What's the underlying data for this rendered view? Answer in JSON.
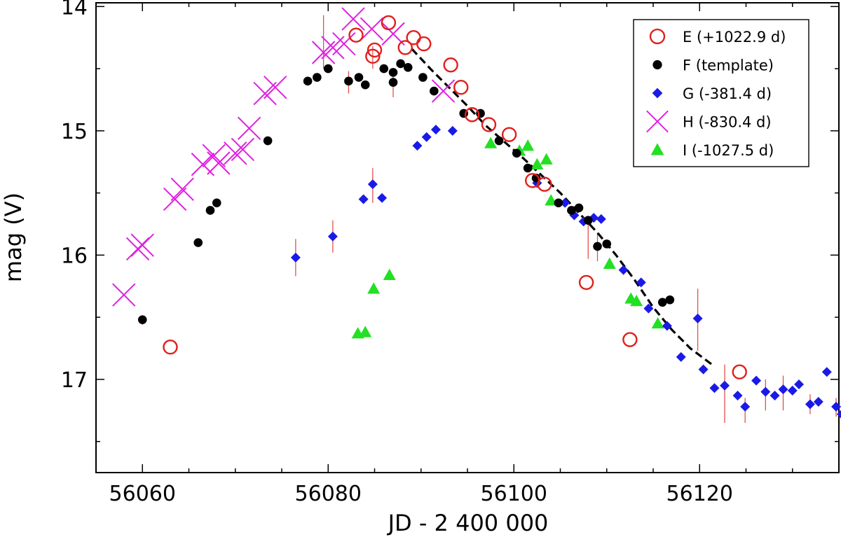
{
  "chart_data": {
    "type": "scatter",
    "title": "",
    "xlabel": "JD - 2 400 000",
    "ylabel": "mag (V)",
    "xlim": [
      56055,
      56135
    ],
    "ylim": [
      17.75,
      13.97
    ],
    "y_inverted": true,
    "xticks": [
      56060,
      56080,
      56100,
      56120
    ],
    "xtick_labels": [
      "56060",
      "56080",
      "56100",
      "56120"
    ],
    "yticks": [
      14,
      15,
      16,
      17
    ],
    "ytick_labels": [
      "14",
      "15",
      "16",
      "17"
    ],
    "legend_position": "top-right",
    "series": [
      {
        "name": "E (+1022.9 d)",
        "marker": "open-circle",
        "color": "#e0201c",
        "points": [
          [
            56063.0,
            16.74
          ],
          [
            56083.0,
            14.23
          ],
          [
            56084.8,
            14.4
          ],
          [
            56085.0,
            14.35
          ],
          [
            56086.5,
            14.13
          ],
          [
            56088.3,
            14.33
          ],
          [
            56089.2,
            14.25
          ],
          [
            56090.3,
            14.3
          ],
          [
            56093.2,
            14.47
          ],
          [
            56094.3,
            14.65
          ],
          [
            56095.5,
            14.87
          ],
          [
            56097.3,
            14.95
          ],
          [
            56099.5,
            15.03
          ],
          [
            56102.0,
            15.4
          ],
          [
            56103.3,
            15.43
          ],
          [
            56107.8,
            16.22
          ],
          [
            56112.5,
            16.68
          ],
          [
            56124.3,
            16.94
          ]
        ]
      },
      {
        "name": "F (template)",
        "marker": "filled-circle",
        "color": "#000000",
        "points": [
          [
            56060.0,
            16.52
          ],
          [
            56066.0,
            15.9
          ],
          [
            56067.3,
            15.64
          ],
          [
            56068.0,
            15.58
          ],
          [
            56073.5,
            15.08
          ],
          [
            56077.8,
            14.6
          ],
          [
            56078.8,
            14.57
          ],
          [
            56080.0,
            14.5
          ],
          [
            56082.2,
            14.6
          ],
          [
            56083.3,
            14.57
          ],
          [
            56084.0,
            14.63
          ],
          [
            56086.0,
            14.5
          ],
          [
            56087.0,
            14.53
          ],
          [
            56087.0,
            14.61
          ],
          [
            56087.8,
            14.46
          ],
          [
            56088.6,
            14.49
          ],
          [
            56090.2,
            14.57
          ],
          [
            56091.4,
            14.68
          ],
          [
            56094.6,
            14.86
          ],
          [
            56096.4,
            14.86
          ],
          [
            56098.4,
            15.08
          ],
          [
            56100.3,
            15.18
          ],
          [
            56101.5,
            15.3
          ],
          [
            56102.4,
            15.38
          ],
          [
            56104.8,
            15.58
          ],
          [
            56106.2,
            15.64
          ],
          [
            56107.0,
            15.62
          ],
          [
            56108.0,
            15.72
          ],
          [
            56109.0,
            15.93
          ],
          [
            56110.0,
            15.91
          ],
          [
            56116.0,
            16.38
          ],
          [
            56116.8,
            16.36
          ]
        ]
      },
      {
        "name": "G (-381.4 d)",
        "marker": "filled-diamond",
        "color": "#1a1ae6",
        "points": [
          [
            56076.5,
            16.02
          ],
          [
            56080.5,
            15.85
          ],
          [
            56083.8,
            15.55
          ],
          [
            56084.8,
            15.43
          ],
          [
            56085.8,
            15.54
          ],
          [
            56089.6,
            15.12
          ],
          [
            56090.6,
            15.05
          ],
          [
            56091.6,
            14.99
          ],
          [
            56093.4,
            15.0
          ],
          [
            56102.5,
            15.42
          ],
          [
            56105.5,
            15.58
          ],
          [
            56106.5,
            15.68
          ],
          [
            56107.5,
            15.73
          ],
          [
            56108.6,
            15.7
          ],
          [
            56109.4,
            15.71
          ],
          [
            56111.8,
            16.12
          ],
          [
            56113.7,
            16.22
          ],
          [
            56114.5,
            16.43
          ],
          [
            56116.5,
            16.57
          ],
          [
            56118.0,
            16.82
          ],
          [
            56119.8,
            16.51
          ],
          [
            56120.4,
            16.92
          ],
          [
            56121.6,
            17.07
          ],
          [
            56122.7,
            17.05
          ],
          [
            56124.1,
            17.13
          ],
          [
            56124.9,
            17.22
          ],
          [
            56126.1,
            17.01
          ],
          [
            56127.1,
            17.1
          ],
          [
            56128.1,
            17.13
          ],
          [
            56129.0,
            17.08
          ],
          [
            56130.0,
            17.09
          ],
          [
            56130.7,
            17.04
          ],
          [
            56131.9,
            17.2
          ],
          [
            56132.8,
            17.18
          ],
          [
            56133.7,
            16.94
          ],
          [
            56134.7,
            17.22
          ],
          [
            56135.3,
            17.28
          ]
        ]
      },
      {
        "name": "H (-830.4 d)",
        "marker": "x",
        "color": "#e020e0",
        "points": [
          [
            56058.0,
            16.32
          ],
          [
            56059.5,
            15.95
          ],
          [
            56060.0,
            15.92
          ],
          [
            56063.5,
            15.55
          ],
          [
            56064.3,
            15.47
          ],
          [
            56066.5,
            15.27
          ],
          [
            56067.7,
            15.2
          ],
          [
            56068.2,
            15.26
          ],
          [
            56070.0,
            15.18
          ],
          [
            56070.8,
            15.15
          ],
          [
            56071.5,
            14.98
          ],
          [
            56073.2,
            14.7
          ],
          [
            56074.3,
            14.65
          ],
          [
            56079.5,
            14.37
          ],
          [
            56080.5,
            14.33
          ],
          [
            56081.7,
            14.3
          ],
          [
            56082.7,
            14.1
          ],
          [
            56084.7,
            14.18
          ],
          [
            56087.0,
            14.22
          ],
          [
            56092.4,
            14.68
          ]
        ]
      },
      {
        "name": "I (-1027.5 d)",
        "marker": "filled-triangle",
        "color": "#22e022",
        "points": [
          [
            56083.2,
            16.63
          ],
          [
            56084.0,
            16.62
          ],
          [
            56084.9,
            16.27
          ],
          [
            56086.6,
            16.16
          ],
          [
            56097.5,
            15.1
          ],
          [
            56100.6,
            15.16
          ],
          [
            56101.5,
            15.12
          ],
          [
            56102.5,
            15.27
          ],
          [
            56103.5,
            15.23
          ],
          [
            56104.0,
            15.56
          ],
          [
            56110.3,
            16.07
          ],
          [
            56112.6,
            16.35
          ],
          [
            56113.2,
            16.37
          ],
          [
            56115.5,
            16.55
          ]
        ]
      }
    ],
    "error_bars": [
      {
        "x": 56060.0,
        "low": 16.49,
        "high": 16.56
      },
      {
        "x": 56076.5,
        "low": 15.87,
        "high": 16.17
      },
      {
        "x": 56080.5,
        "low": 15.72,
        "high": 15.98
      },
      {
        "x": 56084.8,
        "low": 15.3,
        "high": 15.58
      },
      {
        "x": 56079.5,
        "low": 14.07,
        "high": 14.5
      },
      {
        "x": 56082.2,
        "low": 14.52,
        "high": 14.7
      },
      {
        "x": 56084.8,
        "low": 14.32,
        "high": 14.5
      },
      {
        "x": 56087.0,
        "low": 14.5,
        "high": 14.73
      },
      {
        "x": 56108.0,
        "low": 15.75,
        "high": 16.03
      },
      {
        "x": 56109.0,
        "low": 15.82,
        "high": 16.05
      },
      {
        "x": 56119.8,
        "low": 16.27,
        "high": 16.77
      },
      {
        "x": 56122.7,
        "low": 16.88,
        "high": 17.35
      },
      {
        "x": 56124.9,
        "low": 17.15,
        "high": 17.35
      },
      {
        "x": 56127.1,
        "low": 17.0,
        "high": 17.25
      },
      {
        "x": 56129.0,
        "low": 16.97,
        "high": 17.25
      },
      {
        "x": 56131.9,
        "low": 17.12,
        "high": 17.28
      },
      {
        "x": 56134.7,
        "low": 17.15,
        "high": 17.3
      }
    ],
    "fit_line": {
      "name": "template fit",
      "style": "dashed",
      "color": "#000000",
      "points": [
        [
          56089.0,
          14.34
        ],
        [
          56091.0,
          14.5
        ],
        [
          56093.0,
          14.65
        ],
        [
          56095.0,
          14.8
        ],
        [
          56097.0,
          14.96
        ],
        [
          56099.0,
          15.09
        ],
        [
          56101.0,
          15.22
        ],
        [
          56103.0,
          15.36
        ],
        [
          56105.0,
          15.5
        ],
        [
          56107.0,
          15.66
        ],
        [
          56109.0,
          15.82
        ],
        [
          56111.0,
          16.0
        ],
        [
          56113.0,
          16.2
        ],
        [
          56115.0,
          16.42
        ],
        [
          56117.0,
          16.6
        ],
        [
          56119.0,
          16.75
        ],
        [
          56121.5,
          16.89
        ]
      ]
    }
  }
}
